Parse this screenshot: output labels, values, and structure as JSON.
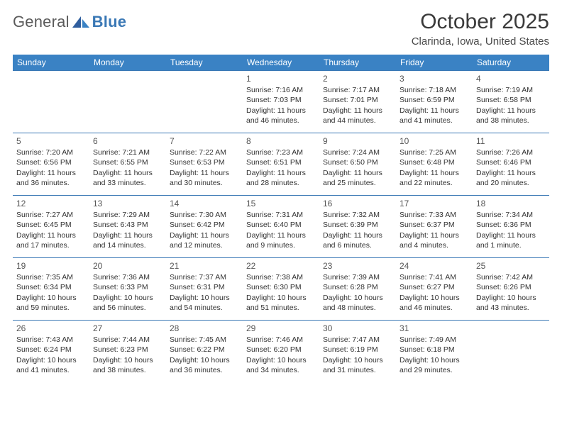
{
  "logo": {
    "text1": "General",
    "text2": "Blue"
  },
  "title": "October 2025",
  "location": "Clarinda, Iowa, United States",
  "colors": {
    "header_bg": "#3a82c4",
    "header_text": "#ffffff",
    "border": "#3a78b5",
    "body_text": "#333333",
    "title_text": "#3a3a3a",
    "logo_gray": "#5a5a5a",
    "logo_blue": "#3a78b5",
    "background": "#ffffff"
  },
  "typography": {
    "title_fontsize": 30,
    "location_fontsize": 15,
    "day_header_fontsize": 12,
    "cell_fontsize": 10.5,
    "daynum_fontsize": 12,
    "logo_fontsize": 22
  },
  "day_headers": [
    "Sunday",
    "Monday",
    "Tuesday",
    "Wednesday",
    "Thursday",
    "Friday",
    "Saturday"
  ],
  "weeks": [
    [
      {
        "blank": true
      },
      {
        "blank": true
      },
      {
        "blank": true
      },
      {
        "day": "1",
        "sunrise": "Sunrise: 7:16 AM",
        "sunset": "Sunset: 7:03 PM",
        "daylight": "Daylight: 11 hours and 46 minutes."
      },
      {
        "day": "2",
        "sunrise": "Sunrise: 7:17 AM",
        "sunset": "Sunset: 7:01 PM",
        "daylight": "Daylight: 11 hours and 44 minutes."
      },
      {
        "day": "3",
        "sunrise": "Sunrise: 7:18 AM",
        "sunset": "Sunset: 6:59 PM",
        "daylight": "Daylight: 11 hours and 41 minutes."
      },
      {
        "day": "4",
        "sunrise": "Sunrise: 7:19 AM",
        "sunset": "Sunset: 6:58 PM",
        "daylight": "Daylight: 11 hours and 38 minutes."
      }
    ],
    [
      {
        "day": "5",
        "sunrise": "Sunrise: 7:20 AM",
        "sunset": "Sunset: 6:56 PM",
        "daylight": "Daylight: 11 hours and 36 minutes."
      },
      {
        "day": "6",
        "sunrise": "Sunrise: 7:21 AM",
        "sunset": "Sunset: 6:55 PM",
        "daylight": "Daylight: 11 hours and 33 minutes."
      },
      {
        "day": "7",
        "sunrise": "Sunrise: 7:22 AM",
        "sunset": "Sunset: 6:53 PM",
        "daylight": "Daylight: 11 hours and 30 minutes."
      },
      {
        "day": "8",
        "sunrise": "Sunrise: 7:23 AM",
        "sunset": "Sunset: 6:51 PM",
        "daylight": "Daylight: 11 hours and 28 minutes."
      },
      {
        "day": "9",
        "sunrise": "Sunrise: 7:24 AM",
        "sunset": "Sunset: 6:50 PM",
        "daylight": "Daylight: 11 hours and 25 minutes."
      },
      {
        "day": "10",
        "sunrise": "Sunrise: 7:25 AM",
        "sunset": "Sunset: 6:48 PM",
        "daylight": "Daylight: 11 hours and 22 minutes."
      },
      {
        "day": "11",
        "sunrise": "Sunrise: 7:26 AM",
        "sunset": "Sunset: 6:46 PM",
        "daylight": "Daylight: 11 hours and 20 minutes."
      }
    ],
    [
      {
        "day": "12",
        "sunrise": "Sunrise: 7:27 AM",
        "sunset": "Sunset: 6:45 PM",
        "daylight": "Daylight: 11 hours and 17 minutes."
      },
      {
        "day": "13",
        "sunrise": "Sunrise: 7:29 AM",
        "sunset": "Sunset: 6:43 PM",
        "daylight": "Daylight: 11 hours and 14 minutes."
      },
      {
        "day": "14",
        "sunrise": "Sunrise: 7:30 AM",
        "sunset": "Sunset: 6:42 PM",
        "daylight": "Daylight: 11 hours and 12 minutes."
      },
      {
        "day": "15",
        "sunrise": "Sunrise: 7:31 AM",
        "sunset": "Sunset: 6:40 PM",
        "daylight": "Daylight: 11 hours and 9 minutes."
      },
      {
        "day": "16",
        "sunrise": "Sunrise: 7:32 AM",
        "sunset": "Sunset: 6:39 PM",
        "daylight": "Daylight: 11 hours and 6 minutes."
      },
      {
        "day": "17",
        "sunrise": "Sunrise: 7:33 AM",
        "sunset": "Sunset: 6:37 PM",
        "daylight": "Daylight: 11 hours and 4 minutes."
      },
      {
        "day": "18",
        "sunrise": "Sunrise: 7:34 AM",
        "sunset": "Sunset: 6:36 PM",
        "daylight": "Daylight: 11 hours and 1 minute."
      }
    ],
    [
      {
        "day": "19",
        "sunrise": "Sunrise: 7:35 AM",
        "sunset": "Sunset: 6:34 PM",
        "daylight": "Daylight: 10 hours and 59 minutes."
      },
      {
        "day": "20",
        "sunrise": "Sunrise: 7:36 AM",
        "sunset": "Sunset: 6:33 PM",
        "daylight": "Daylight: 10 hours and 56 minutes."
      },
      {
        "day": "21",
        "sunrise": "Sunrise: 7:37 AM",
        "sunset": "Sunset: 6:31 PM",
        "daylight": "Daylight: 10 hours and 54 minutes."
      },
      {
        "day": "22",
        "sunrise": "Sunrise: 7:38 AM",
        "sunset": "Sunset: 6:30 PM",
        "daylight": "Daylight: 10 hours and 51 minutes."
      },
      {
        "day": "23",
        "sunrise": "Sunrise: 7:39 AM",
        "sunset": "Sunset: 6:28 PM",
        "daylight": "Daylight: 10 hours and 48 minutes."
      },
      {
        "day": "24",
        "sunrise": "Sunrise: 7:41 AM",
        "sunset": "Sunset: 6:27 PM",
        "daylight": "Daylight: 10 hours and 46 minutes."
      },
      {
        "day": "25",
        "sunrise": "Sunrise: 7:42 AM",
        "sunset": "Sunset: 6:26 PM",
        "daylight": "Daylight: 10 hours and 43 minutes."
      }
    ],
    [
      {
        "day": "26",
        "sunrise": "Sunrise: 7:43 AM",
        "sunset": "Sunset: 6:24 PM",
        "daylight": "Daylight: 10 hours and 41 minutes."
      },
      {
        "day": "27",
        "sunrise": "Sunrise: 7:44 AM",
        "sunset": "Sunset: 6:23 PM",
        "daylight": "Daylight: 10 hours and 38 minutes."
      },
      {
        "day": "28",
        "sunrise": "Sunrise: 7:45 AM",
        "sunset": "Sunset: 6:22 PM",
        "daylight": "Daylight: 10 hours and 36 minutes."
      },
      {
        "day": "29",
        "sunrise": "Sunrise: 7:46 AM",
        "sunset": "Sunset: 6:20 PM",
        "daylight": "Daylight: 10 hours and 34 minutes."
      },
      {
        "day": "30",
        "sunrise": "Sunrise: 7:47 AM",
        "sunset": "Sunset: 6:19 PM",
        "daylight": "Daylight: 10 hours and 31 minutes."
      },
      {
        "day": "31",
        "sunrise": "Sunrise: 7:49 AM",
        "sunset": "Sunset: 6:18 PM",
        "daylight": "Daylight: 10 hours and 29 minutes."
      },
      {
        "blank": true
      }
    ]
  ]
}
